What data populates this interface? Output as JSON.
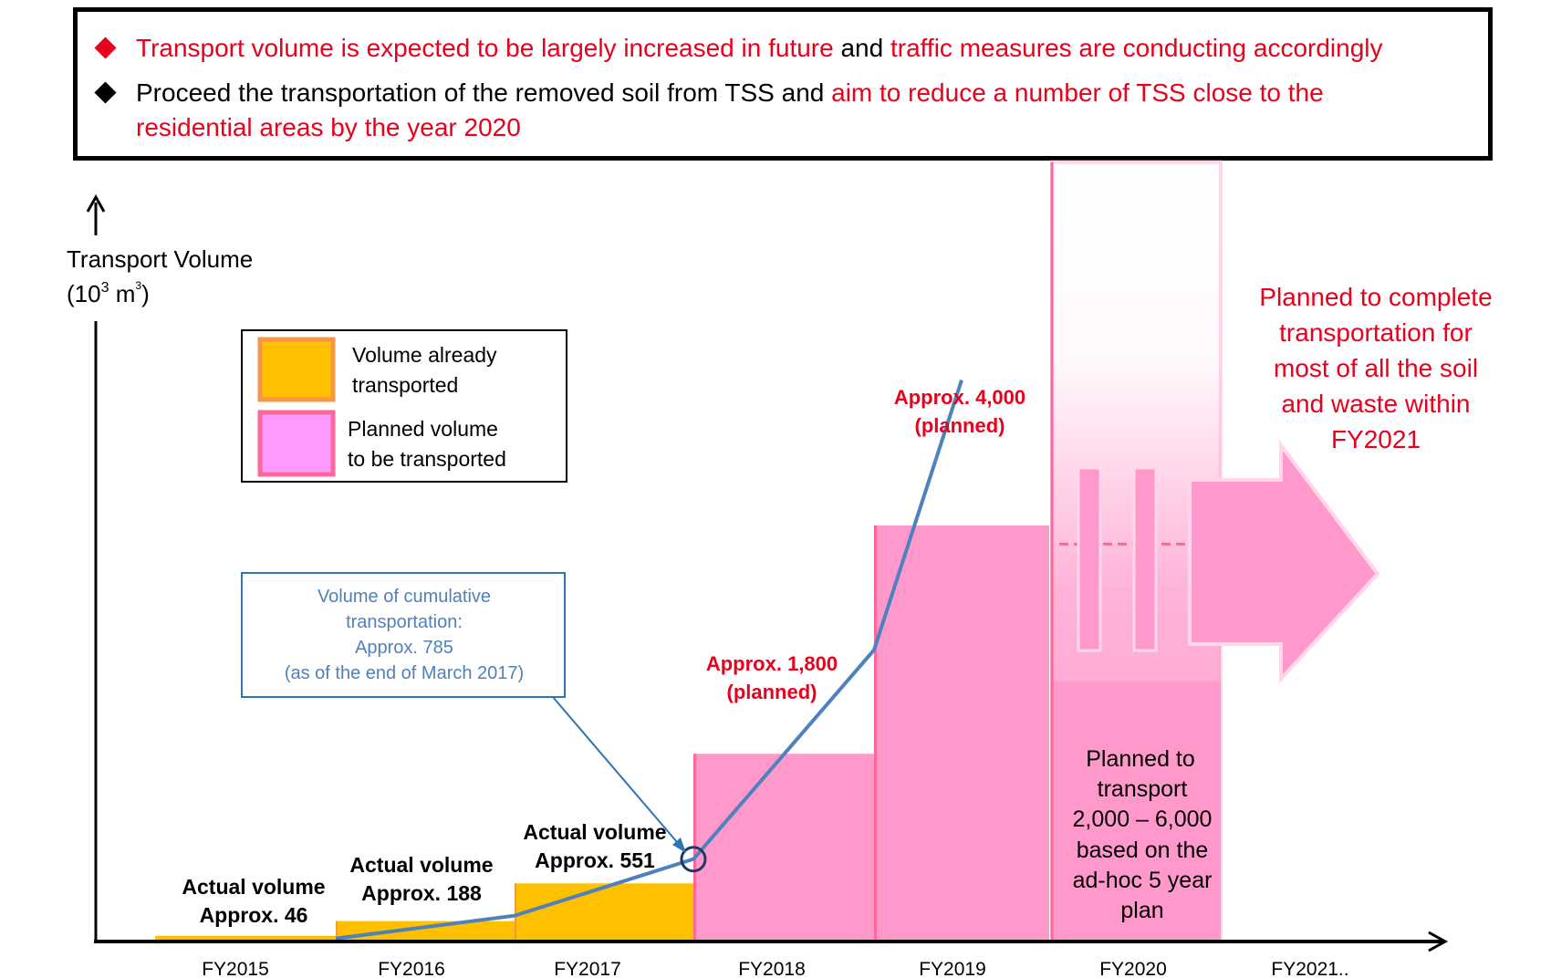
{
  "notice": {
    "bullet1": {
      "part1": "Transport volume is expected to be largely increased in future",
      "part2": " and ",
      "part3": "traffic measures are conducting accordingly"
    },
    "bullet2": {
      "part1": "Proceed the transportation of the removed soil from TSS and ",
      "part2": "aim to reduce a number of TSS close to the",
      "part3": "residential areas by the year 2020"
    },
    "colors": {
      "red": "#e8001c",
      "black": "#000000"
    }
  },
  "chart_data": {
    "type": "bar",
    "ylabel": "Transport Volume",
    "yunit": {
      "base": "(10",
      "exp": "3",
      "unit": " m",
      "unit_sup": "3",
      "close": ")"
    },
    "categories": [
      "FY2015",
      "FY2016",
      "FY2017",
      "FY2018",
      "FY2019",
      "FY2020",
      "FY2021.."
    ],
    "series": [
      {
        "name": "Volume already transported",
        "color": "#ffc000",
        "values": [
          46,
          188,
          551,
          null,
          null,
          null,
          null
        ]
      },
      {
        "name": "Planned volume to be transported",
        "color": "#ff99cc",
        "values": [
          null,
          null,
          null,
          1800,
          4000,
          4000,
          null
        ]
      }
    ],
    "cumulative_line": {
      "color": "#4f81bd",
      "points": [
        {
          "x": "FY2016",
          "y": 20
        },
        {
          "x": "FY2017",
          "y": 240
        },
        {
          "x": "FY2018",
          "y": 785
        },
        {
          "x": "FY2019",
          "y": 2800
        },
        {
          "x": "FY2019",
          "y": 5400
        }
      ]
    },
    "fy2020_range": [
      2000,
      6000
    ],
    "ylim": [
      0,
      7700
    ],
    "legend": {
      "placement": "top-left",
      "items": [
        {
          "line1": "Volume already",
          "line2": "transported",
          "fill": "#ffc000",
          "border": "#f79646"
        },
        {
          "line1": "Planned volume",
          "line2": "to be transported",
          "fill": "#ff99ff",
          "border": "#ff6699"
        }
      ]
    },
    "bar_labels": [
      {
        "line1": "Actual volume",
        "line2": "Approx. 46"
      },
      {
        "line1": "Actual volume",
        "line2": "Approx. 188"
      },
      {
        "line1": "Actual volume",
        "line2": "Approx. 551"
      },
      {
        "line1": "Approx. 1,800",
        "line2": "(planned)"
      },
      {
        "line1": "Approx. 4,000",
        "line2": "(planned)"
      }
    ],
    "callout": {
      "lines": [
        "Volume of cumulative",
        "transportation:",
        "Approx. 785",
        "(as of the end of March 2017)"
      ],
      "color": "#4f81bd"
    },
    "fy2020_text": [
      "Planned to",
      "transport",
      "2,000 – 6,000",
      "based on the",
      "ad-hoc 5 year",
      "plan"
    ],
    "arrow_text": [
      "Planned to complete",
      "transportation for",
      "most of all the soil",
      "and waste within",
      "FY2021"
    ],
    "colors": {
      "orange": "#ffc000",
      "orange_edge": "#f79646",
      "pink": "#ff99cc",
      "pink_edge": "#ff6699",
      "blue": "#4f81bd",
      "red": "#e8001c"
    }
  }
}
